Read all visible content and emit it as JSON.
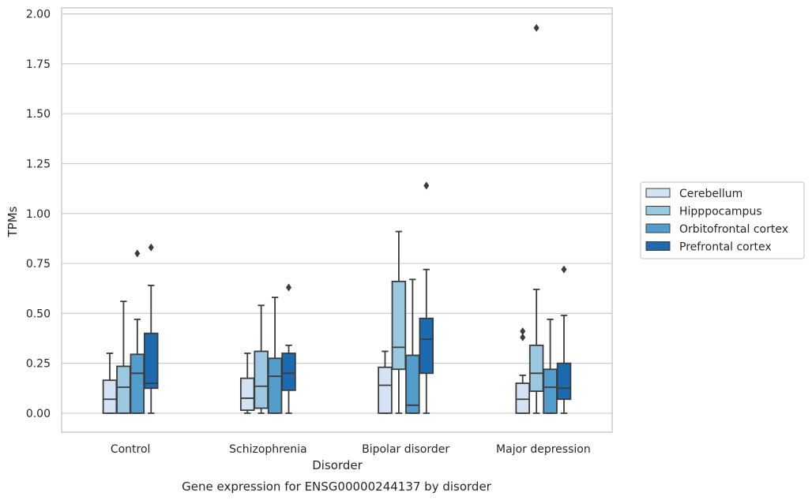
{
  "chart_data": {
    "type": "boxplot",
    "caption": "Gene expression for ENSG00000244137 by disorder",
    "xlabel": "Disorder",
    "ylabel": "TPMs",
    "ylim": [
      -0.095,
      2.03
    ],
    "yticks": [
      "0.00",
      "0.25",
      "0.50",
      "0.75",
      "1.00",
      "1.25",
      "1.50",
      "1.75",
      "2.00"
    ],
    "grid": "horizontal",
    "legend_position": "right",
    "categories": [
      "Control",
      "Schizophrenia",
      "Bipolar disorder",
      "Major depression"
    ],
    "series": [
      {
        "name": "Cerebellum",
        "color": "#d3e3f3",
        "boxes": [
          {
            "whislo": 0.0,
            "q1": 0.0,
            "med": 0.07,
            "q3": 0.165,
            "whishi": 0.3,
            "fliers": []
          },
          {
            "whislo": 0.0,
            "q1": 0.015,
            "med": 0.075,
            "q3": 0.175,
            "whishi": 0.3,
            "fliers": []
          },
          {
            "whislo": 0.0,
            "q1": 0.0,
            "med": 0.14,
            "q3": 0.23,
            "whishi": 0.31,
            "fliers": []
          },
          {
            "whislo": 0.0,
            "q1": 0.0,
            "med": 0.07,
            "q3": 0.15,
            "whishi": 0.19,
            "fliers": [
              0.38,
              0.41
            ]
          }
        ]
      },
      {
        "name": "Hipppocampus",
        "color": "#9ac8e0",
        "boxes": [
          {
            "whislo": 0.0,
            "q1": 0.0,
            "med": 0.13,
            "q3": 0.235,
            "whishi": 0.56,
            "fliers": []
          },
          {
            "whislo": 0.0,
            "q1": 0.025,
            "med": 0.135,
            "q3": 0.31,
            "whishi": 0.54,
            "fliers": []
          },
          {
            "whislo": 0.0,
            "q1": 0.22,
            "med": 0.33,
            "q3": 0.66,
            "whishi": 0.91,
            "fliers": []
          },
          {
            "whislo": 0.0,
            "q1": 0.11,
            "med": 0.2,
            "q3": 0.34,
            "whishi": 0.62,
            "fliers": [
              1.93
            ]
          }
        ]
      },
      {
        "name": "Orbitofrontal cortex",
        "color": "#529dcc",
        "boxes": [
          {
            "whislo": 0.0,
            "q1": 0.0,
            "med": 0.2,
            "q3": 0.295,
            "whishi": 0.47,
            "fliers": [
              0.8
            ]
          },
          {
            "whislo": 0.0,
            "q1": 0.0,
            "med": 0.185,
            "q3": 0.275,
            "whishi": 0.58,
            "fliers": []
          },
          {
            "whislo": 0.0,
            "q1": 0.0,
            "med": 0.04,
            "q3": 0.29,
            "whishi": 0.67,
            "fliers": []
          },
          {
            "whislo": 0.0,
            "q1": 0.0,
            "med": 0.13,
            "q3": 0.22,
            "whishi": 0.47,
            "fliers": []
          }
        ]
      },
      {
        "name": "Prefrontal cortex",
        "color": "#1c6aaf",
        "boxes": [
          {
            "whislo": 0.0,
            "q1": 0.125,
            "med": 0.15,
            "q3": 0.4,
            "whishi": 0.64,
            "fliers": [
              0.83
            ]
          },
          {
            "whislo": 0.0,
            "q1": 0.115,
            "med": 0.2,
            "q3": 0.3,
            "whishi": 0.34,
            "fliers": [
              0.63
            ]
          },
          {
            "whislo": 0.0,
            "q1": 0.2,
            "med": 0.37,
            "q3": 0.475,
            "whishi": 0.72,
            "fliers": [
              1.14
            ]
          },
          {
            "whislo": 0.0,
            "q1": 0.07,
            "med": 0.125,
            "q3": 0.25,
            "whishi": 0.49,
            "fliers": [
              0.72
            ]
          }
        ]
      }
    ]
  }
}
